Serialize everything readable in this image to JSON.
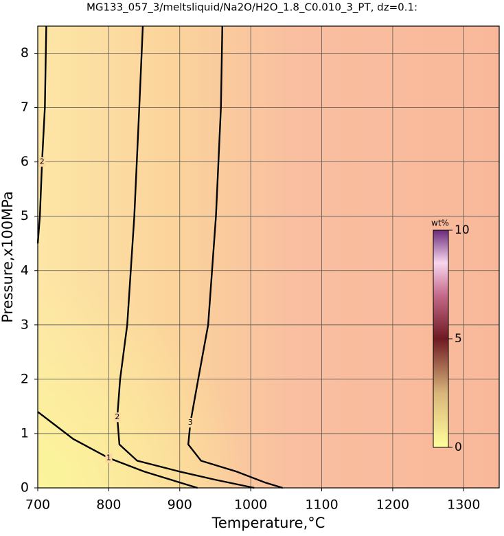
{
  "chart_data": {
    "type": "contour",
    "title": "MG133_057_3/meltsliquid/Na2O/H2O_1.8_C0.010_3_PT, dz=0.1:",
    "x_label": "Temperature,°C",
    "y_label": "Pressure,x100MPa",
    "xlim": [
      700,
      1350
    ],
    "xticks": [
      700,
      800,
      900,
      1000,
      1100,
      1200,
      1300
    ],
    "ylim": [
      0,
      8.5
    ],
    "yticks": [
      0,
      1,
      2,
      3,
      4,
      5,
      6,
      7,
      8
    ],
    "grid": true,
    "contours": [
      {
        "level": 1,
        "x": [
          700,
          720,
          750,
          800,
          850,
          900,
          925
        ],
        "y": [
          1.4,
          1.2,
          0.9,
          0.55,
          0.3,
          0.1,
          0
        ]
      },
      {
        "level": 2,
        "x": [
          712,
          710,
          706,
          703,
          700
        ],
        "y": [
          8.5,
          7,
          6,
          5,
          4.5
        ]
      },
      {
        "level": 2,
        "x": [
          848,
          843,
          836,
          826,
          816,
          812,
          815,
          840,
          900,
          950,
          1005
        ],
        "y": [
          8.5,
          7,
          5,
          3,
          2,
          1.3,
          0.8,
          0.5,
          0.3,
          0.15,
          0
        ]
      },
      {
        "level": 3,
        "x": [
          960,
          958,
          951,
          940,
          926,
          915,
          912,
          930,
          980,
          1020,
          1045
        ],
        "y": [
          8.5,
          7,
          5,
          3,
          2,
          1.2,
          0.8,
          0.5,
          0.3,
          0.1,
          0
        ]
      }
    ],
    "colorbar": {
      "label": "wt%",
      "lim": [
        0,
        10
      ],
      "ticks": [
        0,
        5,
        10
      ]
    }
  }
}
